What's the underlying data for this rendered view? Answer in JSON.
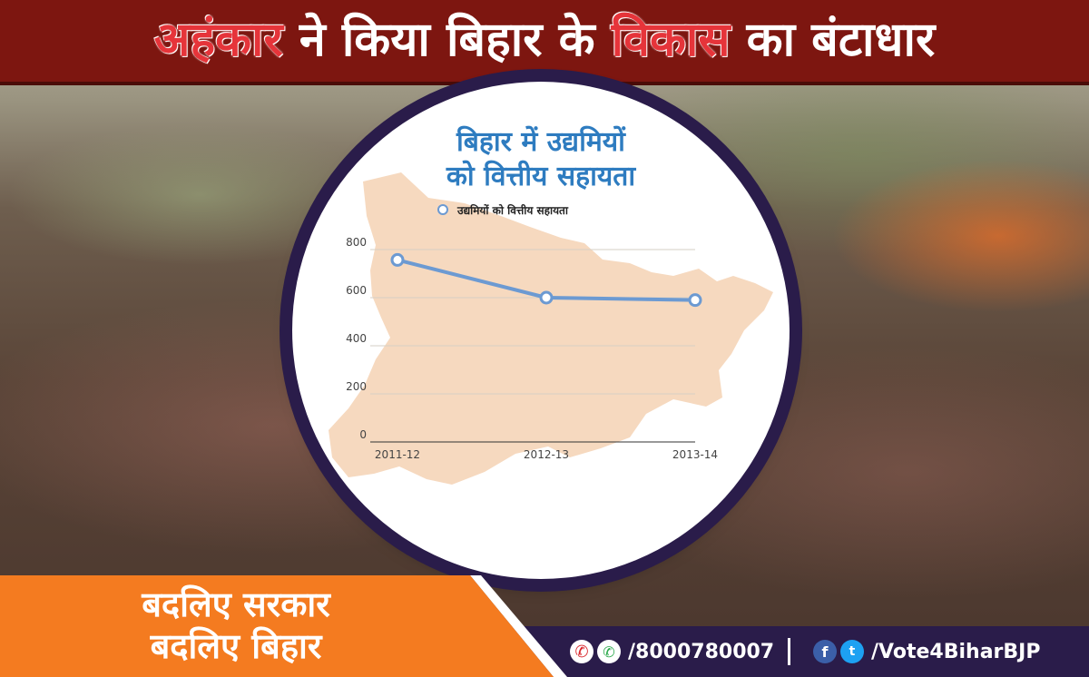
{
  "headline": {
    "part1": "अहंकार",
    "part2": " ने किया बिहार के ",
    "part3": "विकास",
    "part4": " का बंटाधार"
  },
  "chart_data": {
    "type": "line",
    "title_line1": "बिहार में उद्यमियों",
    "title_line2": "को वित्तीय सहायता",
    "categories": [
      "2011-12",
      "2012-13",
      "2013-14"
    ],
    "series": [
      {
        "name": "उद्यमियों को वित्तीय सहायता",
        "values": [
          757,
          600,
          590
        ]
      }
    ],
    "yticks": [
      0,
      200,
      400,
      600,
      800
    ],
    "ylim": [
      0,
      800
    ],
    "grid": true,
    "line_color": "#6c9ad2",
    "map_color": "#f6d9bf",
    "title_color": "#2e7cc0"
  },
  "slogan": {
    "line1": "बदलिए सरकार",
    "line2": "बदलिए बिहार"
  },
  "contact": {
    "phone": "/8000780007",
    "social": "/Vote4BiharBJP"
  },
  "colors": {
    "banner": "#7d1610",
    "highlight": "#e6343a",
    "slogan_bg": "#f47b20",
    "bar_bg": "#2a1c4a"
  },
  "icons": [
    "missed-call-icon",
    "whatsapp-icon",
    "facebook-icon",
    "twitter-icon"
  ]
}
